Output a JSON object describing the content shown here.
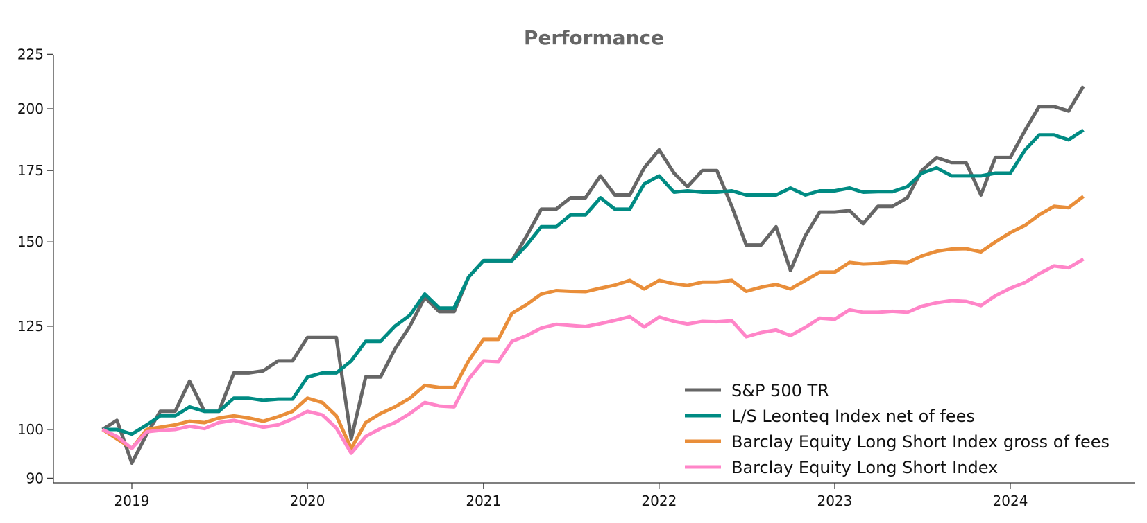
{
  "chart_data": {
    "type": "line",
    "title": "Performance",
    "xlabel": "",
    "ylabel": "",
    "x": [
      "2018-11",
      "2018-12",
      "2019-01",
      "2019-02",
      "2019-03",
      "2019-04",
      "2019-05",
      "2019-06",
      "2019-07",
      "2019-08",
      "2019-09",
      "2019-10",
      "2019-11",
      "2019-12",
      "2020-01",
      "2020-02",
      "2020-03",
      "2020-04",
      "2020-05",
      "2020-06",
      "2020-07",
      "2020-08",
      "2020-09",
      "2020-10",
      "2020-11",
      "2020-12",
      "2021-01",
      "2021-02",
      "2021-03",
      "2021-04",
      "2021-05",
      "2021-06",
      "2021-07",
      "2021-08",
      "2021-09",
      "2021-10",
      "2021-11",
      "2021-12",
      "2022-01",
      "2022-02",
      "2022-03",
      "2022-04",
      "2022-05",
      "2022-06",
      "2022-07",
      "2022-08",
      "2022-09",
      "2022-10",
      "2022-11",
      "2022-12",
      "2023-01",
      "2023-02",
      "2023-03",
      "2023-04",
      "2023-05",
      "2023-06",
      "2023-07",
      "2023-08",
      "2023-09",
      "2023-10",
      "2023-11",
      "2023-12",
      "2024-01",
      "2024-02",
      "2024-03",
      "2024-04",
      "2024-05",
      "2024-06"
    ],
    "x_ticks": [
      "2019",
      "2020",
      "2021",
      "2022",
      "2023",
      "2024"
    ],
    "y_ticks": [
      90,
      100,
      125,
      150,
      175,
      200,
      225
    ],
    "ylim": [
      89,
      225
    ],
    "y_scale": "log",
    "grid": false,
    "legend_position": "lower-right",
    "series": [
      {
        "name": "S&P 500 TR",
        "color": "#666666",
        "values": [
          100,
          102,
          93,
          99,
          104,
          104,
          111,
          104,
          104,
          113,
          113,
          113.5,
          116,
          116,
          122,
          122,
          122,
          98,
          112,
          112,
          119,
          125,
          133,
          129,
          129,
          139,
          144,
          144,
          144,
          152,
          161,
          161,
          165,
          165,
          173,
          166,
          166,
          176,
          183,
          174,
          169,
          175,
          175,
          162,
          149,
          149,
          155,
          141,
          152,
          160,
          160,
          160.5,
          156,
          162,
          162,
          165,
          175,
          180,
          178,
          178,
          166,
          180,
          180,
          191,
          201,
          201,
          199,
          210
        ]
      },
      {
        "name": "L/S Leonteq Index net of fees",
        "color": "#008B83",
        "values": [
          100,
          100,
          99,
          101,
          103,
          103,
          105,
          104,
          104,
          107,
          107,
          106.5,
          106.8,
          106.8,
          112,
          113,
          113,
          116,
          121,
          121,
          125,
          128,
          134,
          130,
          130,
          139,
          144,
          144,
          144,
          149,
          155,
          155,
          159,
          159,
          165,
          161,
          161,
          170,
          173,
          167,
          167.5,
          167,
          167,
          167.5,
          166,
          166,
          166,
          168.5,
          166,
          167.5,
          167.5,
          168.5,
          167,
          167.2,
          167.2,
          169,
          174,
          176,
          173,
          173,
          173,
          174,
          174,
          183,
          189,
          189,
          187,
          191
        ]
      },
      {
        "name": "Barclay Equity Long Short Index gross of fees",
        "color": "#E98E3A",
        "values": [
          100,
          98,
          96,
          100,
          100.5,
          101,
          101.8,
          101.5,
          102.5,
          103,
          102.5,
          101.8,
          102.8,
          104,
          107,
          106,
          103,
          96,
          101.5,
          103.5,
          105,
          107,
          110,
          109.5,
          109.5,
          116,
          121.5,
          121.5,
          128.5,
          131,
          134,
          135,
          134.8,
          134.7,
          135.7,
          136.6,
          138,
          135.5,
          138,
          137,
          136.5,
          137.5,
          137.5,
          138,
          134.8,
          136,
          136.8,
          135.5,
          138,
          140.5,
          140.5,
          143.5,
          143,
          143.2,
          143.6,
          143.4,
          145.5,
          147,
          147.7,
          147.8,
          146.8,
          150,
          153,
          155.5,
          159,
          162,
          161.5,
          165.5
        ]
      },
      {
        "name": "Barclay Equity Long Short Index",
        "color": "#FF85C8",
        "values": [
          100,
          98.5,
          96,
          99.5,
          99.8,
          100,
          100.7,
          100.2,
          101.5,
          102,
          101.2,
          100.5,
          101,
          102.3,
          104,
          103.2,
          100.3,
          95,
          98.5,
          100.2,
          101.5,
          103.5,
          106,
          105.2,
          105,
          111.5,
          116,
          115.8,
          121,
          122.5,
          124.5,
          125.5,
          125.2,
          124.9,
          125.7,
          126.6,
          127.6,
          124.8,
          127.5,
          126.3,
          125.6,
          126.3,
          126.2,
          126.5,
          122.2,
          123.3,
          124,
          122.5,
          124.7,
          127.2,
          126.9,
          129.5,
          128.8,
          128.8,
          129.1,
          128.8,
          130.5,
          131.5,
          132.1,
          131.9,
          130.7,
          133.5,
          135.7,
          137.4,
          140,
          142.4,
          141.8,
          144.5
        ]
      }
    ]
  }
}
